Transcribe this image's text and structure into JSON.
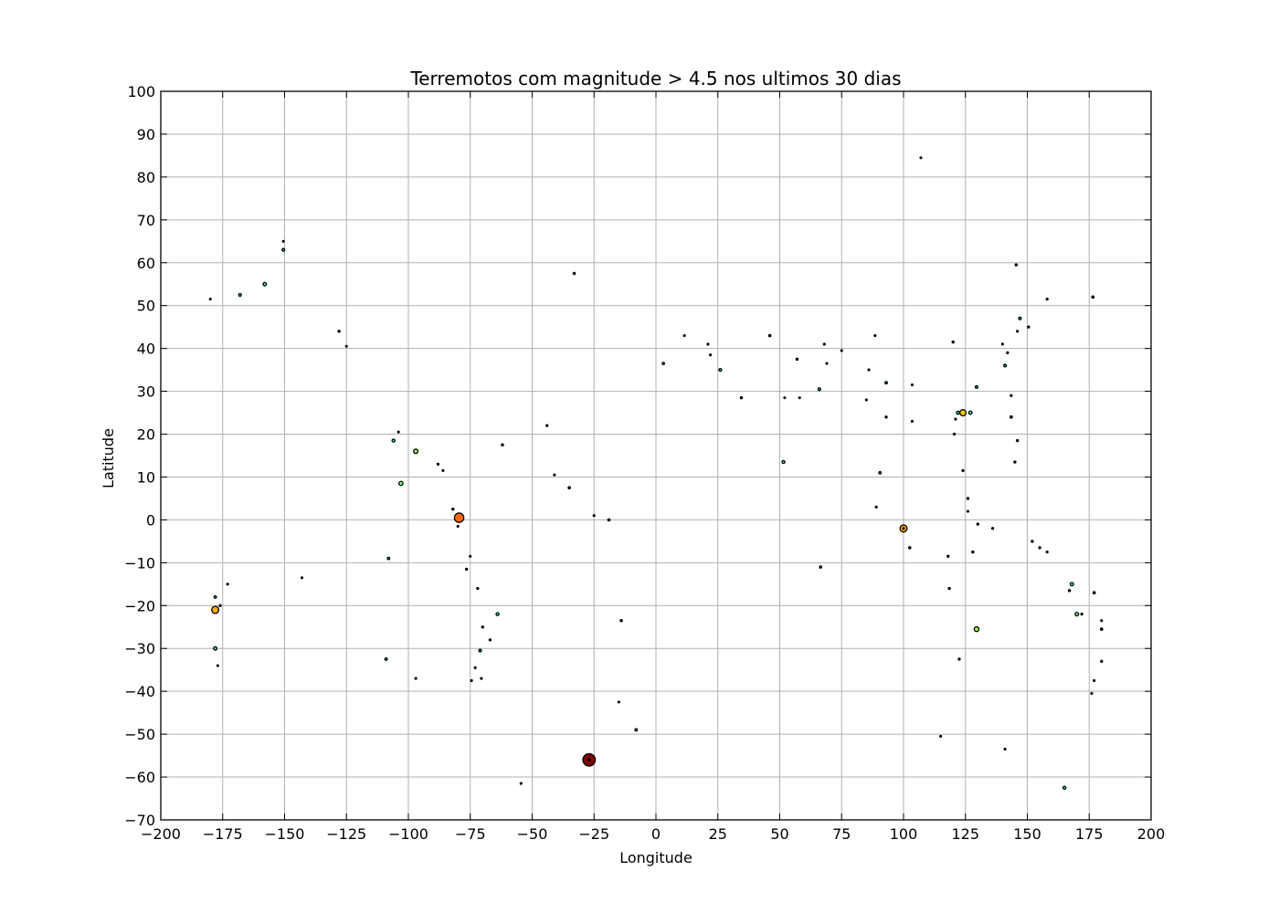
{
  "chart_data": {
    "type": "scatter",
    "title": "Terremotos com magnitude > 4.5 nos ultimos 30 dias",
    "xlabel": "Longitude",
    "ylabel": "Latitude",
    "xlim": [
      -200,
      200
    ],
    "ylim": [
      -70,
      100
    ],
    "xticks": [
      -200,
      -175,
      -150,
      -125,
      -100,
      -75,
      -50,
      -25,
      0,
      25,
      50,
      75,
      100,
      125,
      150,
      175,
      200
    ],
    "yticks": [
      -70,
      -60,
      -50,
      -40,
      -30,
      -20,
      -10,
      0,
      10,
      20,
      30,
      40,
      50,
      60,
      70,
      80,
      90,
      100
    ],
    "grid": true,
    "encoding": {
      "size": "magnitude",
      "color": "magnitude (jet colormap)"
    },
    "points": [
      {
        "x": -27,
        "y": -56,
        "mag": 7.4,
        "color": "#800000"
      },
      {
        "x": -79.5,
        "y": 0.5,
        "mag": 7.0,
        "color": "#ff6a00"
      },
      {
        "x": 100,
        "y": -2,
        "mag": 6.6,
        "color": "#ffab00"
      },
      {
        "x": -178,
        "y": -21,
        "mag": 6.6,
        "color": "#ffab00"
      },
      {
        "x": 124,
        "y": 25,
        "mag": 6.4,
        "color": "#ffcc00"
      },
      {
        "x": 129.5,
        "y": -25.5,
        "mag": 6.0,
        "color": "#aaff4d"
      },
      {
        "x": -97,
        "y": 16,
        "mag": 5.9,
        "color": "#a0ff57"
      },
      {
        "x": -103,
        "y": 8.5,
        "mag": 5.8,
        "color": "#7dff7a"
      },
      {
        "x": 170,
        "y": -22,
        "mag": 5.6,
        "color": "#66ff90"
      },
      {
        "x": 168,
        "y": -15,
        "mag": 5.5,
        "color": "#4dffaa"
      },
      {
        "x": -178,
        "y": -30,
        "mag": 5.5,
        "color": "#4dffaa"
      },
      {
        "x": -158,
        "y": 55,
        "mag": 5.5,
        "color": "#4dffaa"
      },
      {
        "x": 127,
        "y": 25,
        "mag": 5.5,
        "color": "#4dffaa"
      },
      {
        "x": 122,
        "y": 25,
        "mag": 5.4,
        "color": "#30ffc7"
      },
      {
        "x": 165,
        "y": -62.5,
        "mag": 5.3,
        "color": "#19ffde"
      },
      {
        "x": -106,
        "y": 18.5,
        "mag": 5.3,
        "color": "#19ffde"
      },
      {
        "x": 51.5,
        "y": 13.5,
        "mag": 5.3,
        "color": "#19ffde"
      },
      {
        "x": -64,
        "y": -22,
        "mag": 5.3,
        "color": "#19ffde"
      },
      {
        "x": -150.5,
        "y": 63,
        "mag": 5.2,
        "color": "#0de4f0"
      },
      {
        "x": -168,
        "y": 52.5,
        "mag": 5.2,
        "color": "#0de4f0"
      },
      {
        "x": 26,
        "y": 35,
        "mag": 5.2,
        "color": "#0de4f0"
      },
      {
        "x": 66,
        "y": 30.5,
        "mag": 5.2,
        "color": "#0de4f0"
      },
      {
        "x": 141,
        "y": 36,
        "mag": 5.2,
        "color": "#0de4f0"
      },
      {
        "x": 147,
        "y": 47,
        "mag": 5.1,
        "color": "#00ccff"
      },
      {
        "x": 129.5,
        "y": 31,
        "mag": 5.1,
        "color": "#00ccff"
      },
      {
        "x": -71,
        "y": -30.5,
        "mag": 5.1,
        "color": "#00ccff"
      },
      {
        "x": 93,
        "y": 32,
        "mag": 5.0,
        "color": "#00b2ff"
      },
      {
        "x": -109,
        "y": -32.5,
        "mag": 5.0,
        "color": "#00b2ff"
      },
      {
        "x": -108,
        "y": -9,
        "mag": 5.0,
        "color": "#00b2ff"
      },
      {
        "x": 90.5,
        "y": 11,
        "mag": 5.0,
        "color": "#00b2ff"
      },
      {
        "x": -178,
        "y": -18,
        "mag": 5.0,
        "color": "#00b2ff"
      },
      {
        "x": -8,
        "y": -49,
        "mag": 5.0,
        "color": "#00b2ff"
      },
      {
        "x": 3,
        "y": 36.5,
        "mag": 4.9,
        "color": "#0099ff"
      },
      {
        "x": -19,
        "y": 0,
        "mag": 4.9,
        "color": "#0099ff"
      },
      {
        "x": -35,
        "y": 7.5,
        "mag": 4.9,
        "color": "#0099ff"
      },
      {
        "x": 66.5,
        "y": -11,
        "mag": 4.9,
        "color": "#0099ff"
      },
      {
        "x": 177,
        "y": -17,
        "mag": 4.9,
        "color": "#0099ff"
      },
      {
        "x": 180,
        "y": -25.5,
        "mag": 4.9,
        "color": "#0099ff"
      },
      {
        "x": 143.5,
        "y": 24,
        "mag": 4.9,
        "color": "#0099ff"
      },
      {
        "x": 102.5,
        "y": -6.5,
        "mag": 4.9,
        "color": "#0099ff"
      },
      {
        "x": 176.5,
        "y": 52,
        "mag": 4.9,
        "color": "#0099ff"
      },
      {
        "x": -33,
        "y": 57.5,
        "mag": 4.8,
        "color": "#0066ff"
      },
      {
        "x": -62,
        "y": 17.5,
        "mag": 4.8,
        "color": "#0066ff"
      },
      {
        "x": -14,
        "y": -23.5,
        "mag": 4.8,
        "color": "#0066ff"
      },
      {
        "x": 34.5,
        "y": 28.5,
        "mag": 4.8,
        "color": "#0066ff"
      },
      {
        "x": 57,
        "y": 37.5,
        "mag": 4.8,
        "color": "#0066ff"
      },
      {
        "x": 46,
        "y": 43,
        "mag": 4.8,
        "color": "#0066ff"
      },
      {
        "x": 120,
        "y": 41.5,
        "mag": 4.7,
        "color": "#0033ff"
      },
      {
        "x": -128,
        "y": 44,
        "mag": 4.7,
        "color": "#0033ff"
      },
      {
        "x": 122.5,
        "y": -32.5,
        "mag": 4.7,
        "color": "#0033ff"
      },
      {
        "x": 118.5,
        "y": -16,
        "mag": 4.7,
        "color": "#0033ff"
      },
      {
        "x": 118,
        "y": -8.5,
        "mag": 4.7,
        "color": "#0033ff"
      },
      {
        "x": 128,
        "y": -7.5,
        "mag": 4.7,
        "color": "#0033ff"
      },
      {
        "x": 130,
        "y": -1,
        "mag": 4.7,
        "color": "#0033ff"
      },
      {
        "x": 126,
        "y": 5,
        "mag": 4.7,
        "color": "#0033ff"
      },
      {
        "x": 124,
        "y": 11.5,
        "mag": 4.7,
        "color": "#0033ff"
      },
      {
        "x": 145,
        "y": 13.5,
        "mag": 4.7,
        "color": "#0033ff"
      },
      {
        "x": 146,
        "y": 18.5,
        "mag": 4.7,
        "color": "#0033ff"
      },
      {
        "x": 145.5,
        "y": 59.5,
        "mag": 4.7,
        "color": "#0033ff"
      },
      {
        "x": 150.5,
        "y": 45,
        "mag": 4.7,
        "color": "#0033ff"
      },
      {
        "x": 152,
        "y": -5,
        "mag": 4.7,
        "color": "#0033ff"
      },
      {
        "x": 155,
        "y": -6.5,
        "mag": 4.7,
        "color": "#0033ff"
      },
      {
        "x": 167,
        "y": -16.5,
        "mag": 4.7,
        "color": "#0033ff"
      },
      {
        "x": 180,
        "y": -33,
        "mag": 4.7,
        "color": "#0033ff"
      },
      {
        "x": -27,
        "y": -56,
        "mag": 4.7,
        "color": "#0033ff"
      },
      {
        "x": -70,
        "y": -25,
        "mag": 4.7,
        "color": "#0033ff"
      },
      {
        "x": -76.5,
        "y": -11.5,
        "mag": 4.7,
        "color": "#0033ff"
      },
      {
        "x": -82,
        "y": 2.5,
        "mag": 4.7,
        "color": "#0033ff"
      },
      {
        "x": -176,
        "y": -20,
        "mag": 4.7,
        "color": "#0033ff"
      },
      {
        "x": 93,
        "y": 24,
        "mag": 4.7,
        "color": "#0033ff"
      },
      {
        "x": 143.5,
        "y": 29,
        "mag": 4.6,
        "color": "#0000ff"
      },
      {
        "x": 136,
        "y": -2,
        "mag": 4.6,
        "color": "#0000ff"
      },
      {
        "x": 158,
        "y": -7.5,
        "mag": 4.6,
        "color": "#0000ff"
      },
      {
        "x": 172,
        "y": -22,
        "mag": 4.6,
        "color": "#0000ff"
      },
      {
        "x": 120.5,
        "y": 20,
        "mag": 4.6,
        "color": "#0000ff"
      },
      {
        "x": 142,
        "y": 39,
        "mag": 4.6,
        "color": "#0000ff"
      },
      {
        "x": 158,
        "y": 51.5,
        "mag": 4.6,
        "color": "#0000ff"
      },
      {
        "x": -88,
        "y": 13,
        "mag": 4.6,
        "color": "#0000ff"
      },
      {
        "x": -72,
        "y": -16,
        "mag": 4.6,
        "color": "#0000ff"
      },
      {
        "x": -67,
        "y": -28,
        "mag": 4.6,
        "color": "#0000ff"
      },
      {
        "x": -44,
        "y": 22,
        "mag": 4.6,
        "color": "#0000ff"
      },
      {
        "x": -150.5,
        "y": 65,
        "mag": 4.5,
        "color": "#0000cc"
      },
      {
        "x": -180,
        "y": 51.5,
        "mag": 4.5,
        "color": "#0000cc"
      },
      {
        "x": -125,
        "y": 40.5,
        "mag": 4.5,
        "color": "#0000cc"
      },
      {
        "x": -143,
        "y": -13.5,
        "mag": 4.5,
        "color": "#0000cc"
      },
      {
        "x": -97,
        "y": -37,
        "mag": 4.5,
        "color": "#0000cc"
      },
      {
        "x": -104,
        "y": 20.5,
        "mag": 4.5,
        "color": "#0000cc"
      },
      {
        "x": -86,
        "y": 11.5,
        "mag": 4.5,
        "color": "#0000cc"
      },
      {
        "x": -41,
        "y": 10.5,
        "mag": 4.5,
        "color": "#0000cc"
      },
      {
        "x": -54.5,
        "y": -61.5,
        "mag": 4.5,
        "color": "#0000cc"
      },
      {
        "x": -15,
        "y": -42.5,
        "mag": 4.5,
        "color": "#0000cc"
      },
      {
        "x": -25,
        "y": 1,
        "mag": 4.5,
        "color": "#0000cc"
      },
      {
        "x": -74.5,
        "y": -37.5,
        "mag": 4.5,
        "color": "#0000cc"
      },
      {
        "x": -73,
        "y": -34.5,
        "mag": 4.5,
        "color": "#0000cc"
      },
      {
        "x": -70.5,
        "y": -37,
        "mag": 4.5,
        "color": "#0000cc"
      },
      {
        "x": -75,
        "y": -8.5,
        "mag": 4.5,
        "color": "#0000cc"
      },
      {
        "x": -80,
        "y": -1.5,
        "mag": 4.5,
        "color": "#0000cc"
      },
      {
        "x": -177,
        "y": -34,
        "mag": 4.5,
        "color": "#0000cc"
      },
      {
        "x": -173,
        "y": -15,
        "mag": 4.5,
        "color": "#0000cc"
      },
      {
        "x": 11.5,
        "y": 43,
        "mag": 4.5,
        "color": "#0000cc"
      },
      {
        "x": 21,
        "y": 41,
        "mag": 4.5,
        "color": "#0000cc"
      },
      {
        "x": 22,
        "y": 38.5,
        "mag": 4.5,
        "color": "#0000cc"
      },
      {
        "x": 52,
        "y": 28.5,
        "mag": 4.5,
        "color": "#0000cc"
      },
      {
        "x": 58,
        "y": 28.5,
        "mag": 4.5,
        "color": "#0000cc"
      },
      {
        "x": 68,
        "y": 41,
        "mag": 4.5,
        "color": "#0000cc"
      },
      {
        "x": 69,
        "y": 36.5,
        "mag": 4.5,
        "color": "#0000cc"
      },
      {
        "x": 75,
        "y": 39.5,
        "mag": 4.5,
        "color": "#0000cc"
      },
      {
        "x": 85,
        "y": 28,
        "mag": 4.5,
        "color": "#0000cc"
      },
      {
        "x": 86,
        "y": 35,
        "mag": 4.5,
        "color": "#0000cc"
      },
      {
        "x": 88.5,
        "y": 43,
        "mag": 4.5,
        "color": "#0000cc"
      },
      {
        "x": 89,
        "y": 3,
        "mag": 4.5,
        "color": "#0000cc"
      },
      {
        "x": 100,
        "y": -2,
        "mag": 4.5,
        "color": "#0000cc"
      },
      {
        "x": 103.5,
        "y": 23,
        "mag": 4.5,
        "color": "#0000cc"
      },
      {
        "x": 103.5,
        "y": 31.5,
        "mag": 4.5,
        "color": "#0000cc"
      },
      {
        "x": 107,
        "y": 84.5,
        "mag": 4.5,
        "color": "#0000cc"
      },
      {
        "x": 115,
        "y": -50.5,
        "mag": 4.5,
        "color": "#0000cc"
      },
      {
        "x": 121,
        "y": 23.5,
        "mag": 4.5,
        "color": "#0000cc"
      },
      {
        "x": 126,
        "y": 2,
        "mag": 4.5,
        "color": "#0000cc"
      },
      {
        "x": 140,
        "y": 41,
        "mag": 4.5,
        "color": "#0000cc"
      },
      {
        "x": 141,
        "y": -53.5,
        "mag": 4.5,
        "color": "#0000cc"
      },
      {
        "x": 146,
        "y": 44,
        "mag": 4.5,
        "color": "#0000cc"
      },
      {
        "x": 176,
        "y": -40.5,
        "mag": 4.5,
        "color": "#0000cc"
      },
      {
        "x": 177,
        "y": -37.5,
        "mag": 4.5,
        "color": "#0000cc"
      },
      {
        "x": 180,
        "y": -23.5,
        "mag": 4.5,
        "color": "#0000cc"
      }
    ]
  }
}
